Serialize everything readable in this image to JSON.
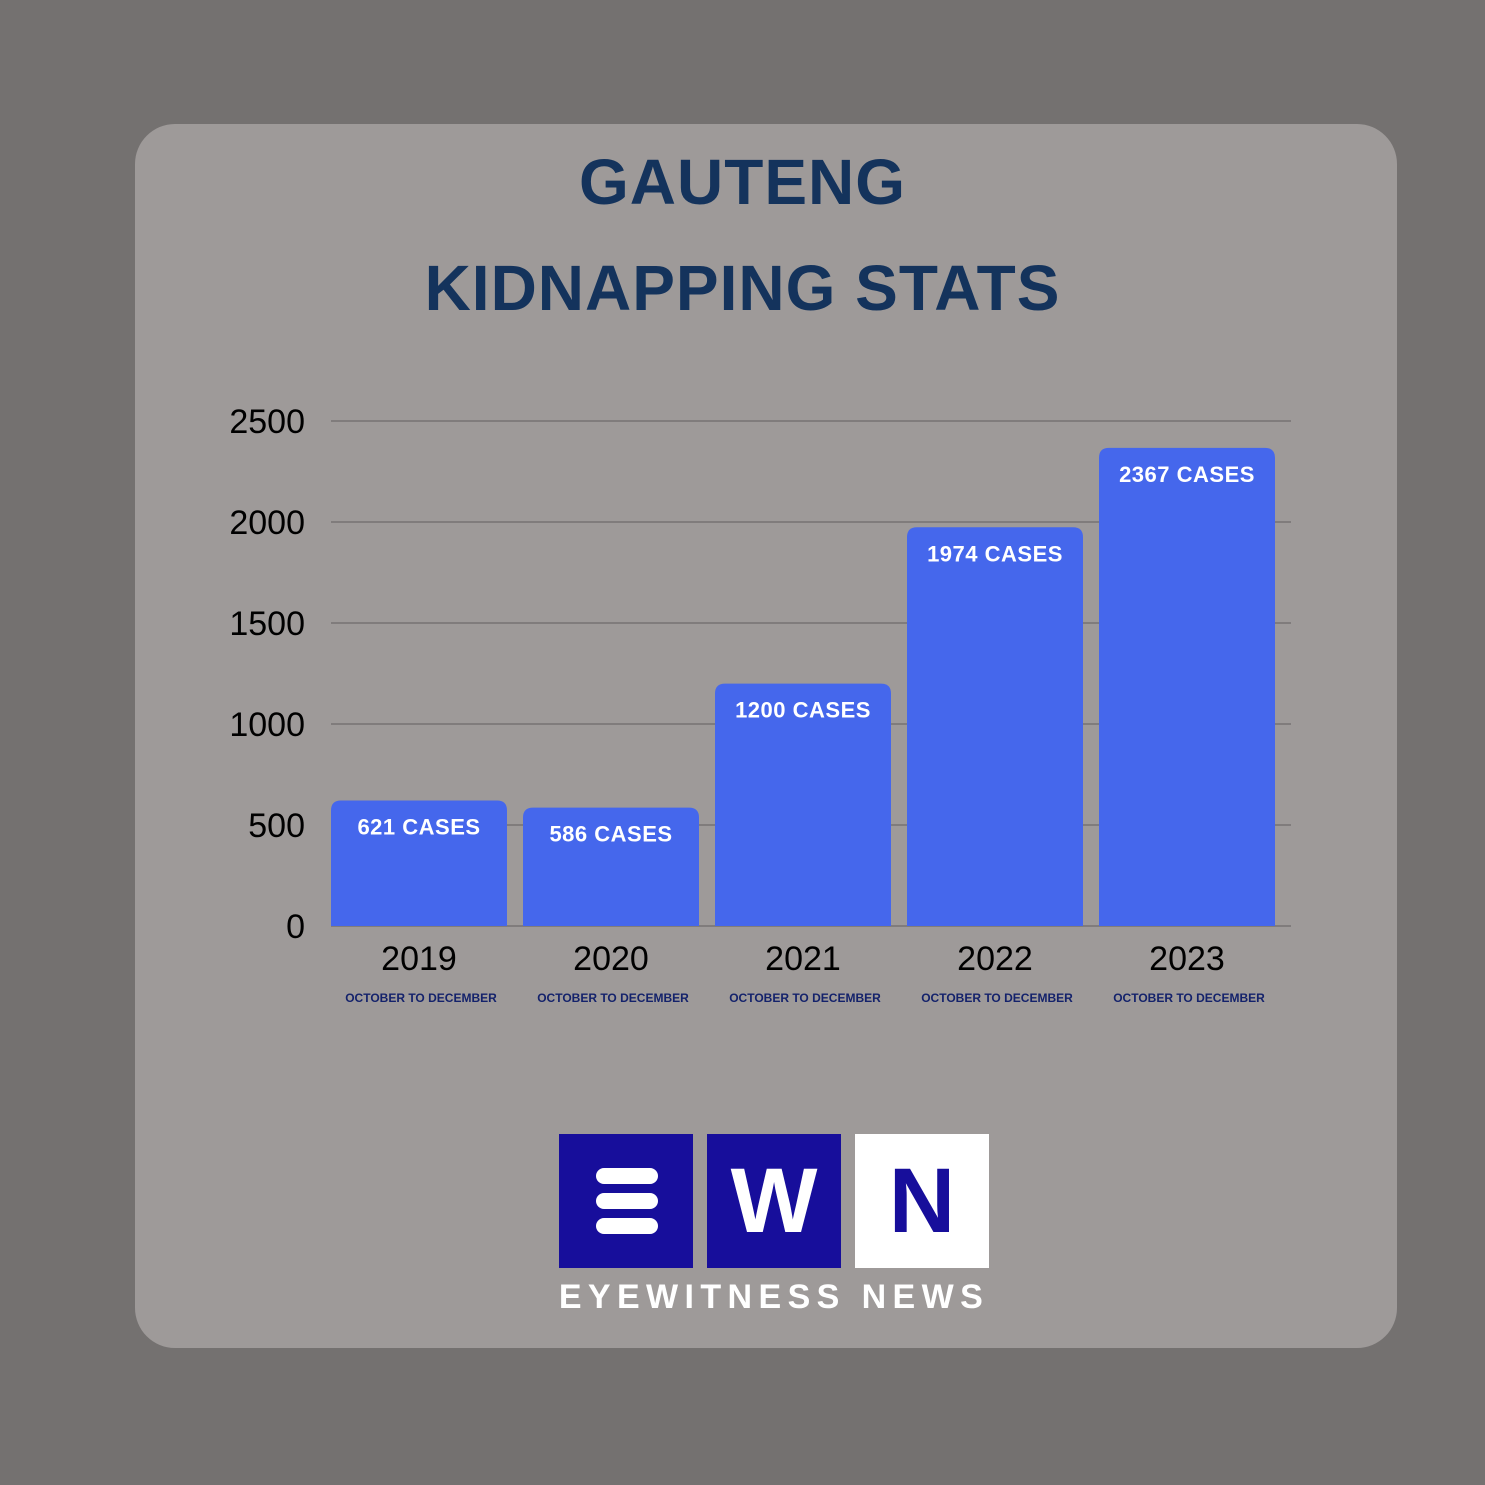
{
  "title_lines": [
    "GAUTENG",
    "KIDNAPPING STATS"
  ],
  "colors": {
    "outer_background": "#747170",
    "card_background": "#9e9a99",
    "title": "#14335c",
    "bar": "#4567ec",
    "bar_label": "#ffffff",
    "sublabel": "#14226b",
    "gridline": "#767372",
    "logo_blue": "#170e9b"
  },
  "chart_data": {
    "type": "bar",
    "title": "GAUTENG KIDNAPPING STATS",
    "xlabel": "",
    "ylabel": "",
    "categories": [
      "2019",
      "2020",
      "2021",
      "2022",
      "2023"
    ],
    "category_sublabels": [
      "OCTOBER TO DECEMBER",
      "OCTOBER TO DECEMBER",
      "OCTOBER TO DECEMBER",
      "OCTOBER TO DECEMBER",
      "OCTOBER TO DECEMBER"
    ],
    "values": [
      621,
      586,
      1200,
      1974,
      2367
    ],
    "data_labels": [
      "621 CASES",
      "586 CASES",
      "1200 CASES",
      "1974 CASES",
      "2367 CASES"
    ],
    "ylim": [
      0,
      2500
    ],
    "yticks": [
      0,
      500,
      1000,
      1500,
      2000,
      2500
    ],
    "grid": true,
    "legend": "none"
  },
  "logo": {
    "letters": [
      "E",
      "W",
      "N"
    ],
    "e_icon": "three-bar-e-icon",
    "subtitle": "EYEWITNESS NEWS"
  }
}
